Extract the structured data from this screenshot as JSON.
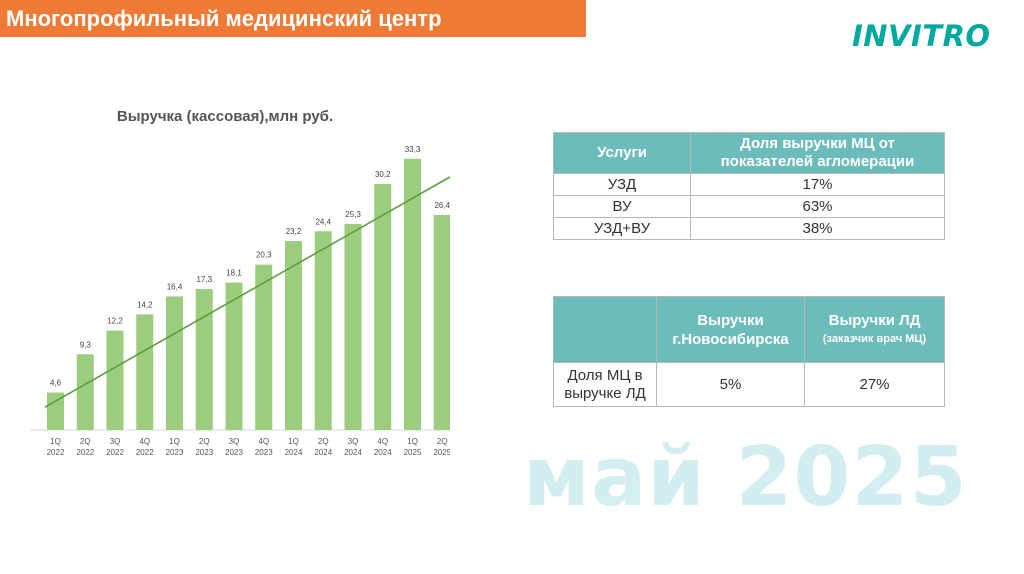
{
  "header": {
    "title": "Многопрофильный медицинский центр",
    "logo": "INVITRO"
  },
  "colors": {
    "header_bg": "#ee7a36",
    "logo": "#00a8a0",
    "bar": "#9ccc7e",
    "trend": "#5a9e3e",
    "table_header": "#6bbcba",
    "watermark": "#d2eef1"
  },
  "chart_data": {
    "type": "bar",
    "title": "Выручка (кассовая),млн руб.",
    "categories": [
      [
        "1Q",
        "2022"
      ],
      [
        "2Q",
        "2022"
      ],
      [
        "3Q",
        "2022"
      ],
      [
        "4Q",
        "2022"
      ],
      [
        "1Q",
        "2023"
      ],
      [
        "2Q",
        "2023"
      ],
      [
        "3Q",
        "2023"
      ],
      [
        "4Q",
        "2023"
      ],
      [
        "1Q",
        "2024"
      ],
      [
        "2Q",
        "2024"
      ],
      [
        "3Q",
        "2024"
      ],
      [
        "4Q",
        "2024"
      ],
      [
        "1Q",
        "2025"
      ],
      [
        "2Q",
        "2025"
      ]
    ],
    "values": [
      4.6,
      9.3,
      12.2,
      14.2,
      16.4,
      17.3,
      18.1,
      20.3,
      23.2,
      24.4,
      25.3,
      30.2,
      33.3,
      26.4
    ],
    "value_labels": [
      "4,6",
      "9,3",
      "12,2",
      "14,2",
      "16,4",
      "17,3",
      "18,1",
      "20,3",
      "23,2",
      "24,4",
      "25,3",
      "30,2",
      "33,3",
      "26,4"
    ],
    "trendline": {
      "type": "linear",
      "from": 2.8,
      "to": 31.4
    },
    "ylim": [
      0,
      35
    ],
    "grid": false,
    "legend": false
  },
  "table1": {
    "headers": [
      "Услуги",
      "Доля выручки МЦ от показателей агломерации"
    ],
    "rows": [
      [
        "УЗД",
        "17%"
      ],
      [
        "ВУ",
        "63%"
      ],
      [
        "УЗД+ВУ",
        "38%"
      ]
    ]
  },
  "table2": {
    "header_col2": "Выручки г.Новосибирска",
    "header_col3": "Выручки ЛД",
    "header_col3_note": "(заказчик врач МЦ)",
    "row_label": "Доля МЦ в выручке ЛД",
    "row_values": [
      "5%",
      "27%"
    ]
  },
  "watermark": "май 2025"
}
